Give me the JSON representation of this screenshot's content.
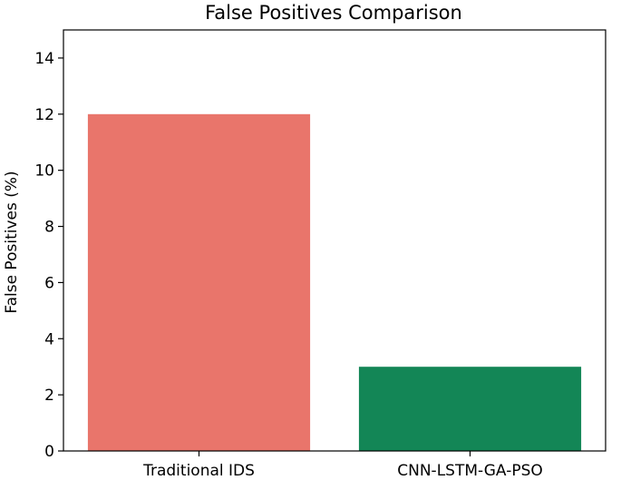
{
  "chart_data": {
    "type": "bar",
    "title": "False Positives Comparison",
    "xlabel": "",
    "ylabel": "False Positives (%)",
    "categories": [
      "Traditional IDS",
      "CNN-LSTM-GA-PSO"
    ],
    "values": [
      12,
      3
    ],
    "colors": [
      "#e9756b",
      "#138656"
    ],
    "ylim": [
      0,
      15
    ],
    "yticks": [
      0,
      2,
      4,
      6,
      8,
      10,
      12,
      14
    ],
    "grid": false,
    "legend": "none"
  }
}
